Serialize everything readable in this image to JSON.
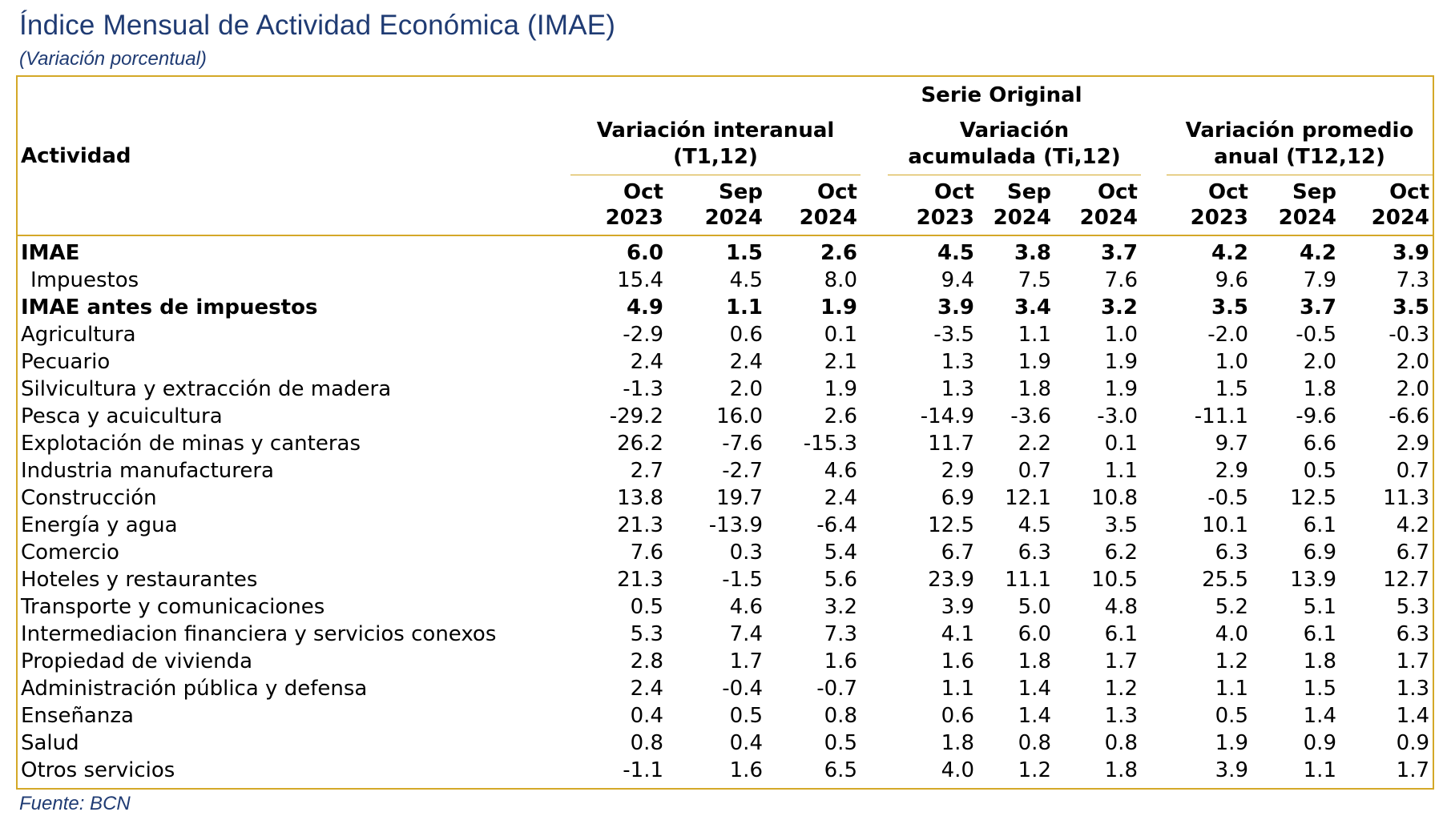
{
  "title": "Índice Mensual de Actividad Económica (IMAE)",
  "subtitle": "(Variación porcentual)",
  "source": "Fuente: BCN",
  "colors": {
    "border": "#d4a828",
    "title": "#1f3b73"
  },
  "table": {
    "activity_header": "Actividad",
    "serie_header": "Serie Original",
    "groups": [
      {
        "line1": "Variación interanual",
        "line2": "(T1,12)"
      },
      {
        "line1": "Variación",
        "line2": "acumulada (Ti,12)"
      },
      {
        "line1": "Variación promedio",
        "line2": "anual (T12,12)"
      }
    ],
    "periods": [
      {
        "month": "Oct",
        "year": "2023"
      },
      {
        "month": "Sep",
        "year": "2024"
      },
      {
        "month": "Oct",
        "year": "2024"
      },
      {
        "month": "Oct",
        "year": "2023"
      },
      {
        "month": "Sep",
        "year": "2024"
      },
      {
        "month": "Oct",
        "year": "2024"
      },
      {
        "month": "Oct",
        "year": "2023"
      },
      {
        "month": "Sep",
        "year": "2024"
      },
      {
        "month": "Oct",
        "year": "2024"
      }
    ],
    "rows": [
      {
        "label": "IMAE",
        "bold": true,
        "indent": false,
        "values": [
          "6.0",
          "1.5",
          "2.6",
          "4.5",
          "3.8",
          "3.7",
          "4.2",
          "4.2",
          "3.9"
        ]
      },
      {
        "label": "Impuestos",
        "bold": false,
        "indent": true,
        "values": [
          "15.4",
          "4.5",
          "8.0",
          "9.4",
          "7.5",
          "7.6",
          "9.6",
          "7.9",
          "7.3"
        ]
      },
      {
        "label": "IMAE antes de impuestos",
        "bold": true,
        "indent": false,
        "values": [
          "4.9",
          "1.1",
          "1.9",
          "3.9",
          "3.4",
          "3.2",
          "3.5",
          "3.7",
          "3.5"
        ]
      },
      {
        "label": "Agricultura",
        "bold": false,
        "indent": false,
        "values": [
          "-2.9",
          "0.6",
          "0.1",
          "-3.5",
          "1.1",
          "1.0",
          "-2.0",
          "-0.5",
          "-0.3"
        ]
      },
      {
        "label": "Pecuario",
        "bold": false,
        "indent": false,
        "values": [
          "2.4",
          "2.4",
          "2.1",
          "1.3",
          "1.9",
          "1.9",
          "1.0",
          "2.0",
          "2.0"
        ]
      },
      {
        "label": "Silvicultura y extracción de madera",
        "bold": false,
        "indent": false,
        "values": [
          "-1.3",
          "2.0",
          "1.9",
          "1.3",
          "1.8",
          "1.9",
          "1.5",
          "1.8",
          "2.0"
        ]
      },
      {
        "label": "Pesca y acuicultura",
        "bold": false,
        "indent": false,
        "values": [
          "-29.2",
          "16.0",
          "2.6",
          "-14.9",
          "-3.6",
          "-3.0",
          "-11.1",
          "-9.6",
          "-6.6"
        ]
      },
      {
        "label": "Explotación de minas y canteras",
        "bold": false,
        "indent": false,
        "values": [
          "26.2",
          "-7.6",
          "-15.3",
          "11.7",
          "2.2",
          "0.1",
          "9.7",
          "6.6",
          "2.9"
        ]
      },
      {
        "label": "Industria manufacturera",
        "bold": false,
        "indent": false,
        "values": [
          "2.7",
          "-2.7",
          "4.6",
          "2.9",
          "0.7",
          "1.1",
          "2.9",
          "0.5",
          "0.7"
        ]
      },
      {
        "label": "Construcción",
        "bold": false,
        "indent": false,
        "values": [
          "13.8",
          "19.7",
          "2.4",
          "6.9",
          "12.1",
          "10.8",
          "-0.5",
          "12.5",
          "11.3"
        ]
      },
      {
        "label": "Energía y agua",
        "bold": false,
        "indent": false,
        "values": [
          "21.3",
          "-13.9",
          "-6.4",
          "12.5",
          "4.5",
          "3.5",
          "10.1",
          "6.1",
          "4.2"
        ]
      },
      {
        "label": "Comercio",
        "bold": false,
        "indent": false,
        "values": [
          "7.6",
          "0.3",
          "5.4",
          "6.7",
          "6.3",
          "6.2",
          "6.3",
          "6.9",
          "6.7"
        ]
      },
      {
        "label": "Hoteles y restaurantes",
        "bold": false,
        "indent": false,
        "values": [
          "21.3",
          "-1.5",
          "5.6",
          "23.9",
          "11.1",
          "10.5",
          "25.5",
          "13.9",
          "12.7"
        ]
      },
      {
        "label": "Transporte y comunicaciones",
        "bold": false,
        "indent": false,
        "values": [
          "0.5",
          "4.6",
          "3.2",
          "3.9",
          "5.0",
          "4.8",
          "5.2",
          "5.1",
          "5.3"
        ]
      },
      {
        "label": "Intermediacion financiera y servicios conexos",
        "bold": false,
        "indent": false,
        "values": [
          "5.3",
          "7.4",
          "7.3",
          "4.1",
          "6.0",
          "6.1",
          "4.0",
          "6.1",
          "6.3"
        ]
      },
      {
        "label": "Propiedad de vivienda",
        "bold": false,
        "indent": false,
        "values": [
          "2.8",
          "1.7",
          "1.6",
          "1.6",
          "1.8",
          "1.7",
          "1.2",
          "1.8",
          "1.7"
        ]
      },
      {
        "label": "Administración pública y defensa",
        "bold": false,
        "indent": false,
        "values": [
          "2.4",
          "-0.4",
          "-0.7",
          "1.1",
          "1.4",
          "1.2",
          "1.1",
          "1.5",
          "1.3"
        ]
      },
      {
        "label": "Enseñanza",
        "bold": false,
        "indent": false,
        "values": [
          "0.4",
          "0.5",
          "0.8",
          "0.6",
          "1.4",
          "1.3",
          "0.5",
          "1.4",
          "1.4"
        ]
      },
      {
        "label": "Salud",
        "bold": false,
        "indent": false,
        "values": [
          "0.8",
          "0.4",
          "0.5",
          "1.8",
          "0.8",
          "0.8",
          "1.9",
          "0.9",
          "0.9"
        ]
      },
      {
        "label": "Otros servicios",
        "bold": false,
        "indent": false,
        "values": [
          "-1.1",
          "1.6",
          "6.5",
          "4.0",
          "1.2",
          "1.8",
          "3.9",
          "1.1",
          "1.7"
        ]
      }
    ]
  }
}
